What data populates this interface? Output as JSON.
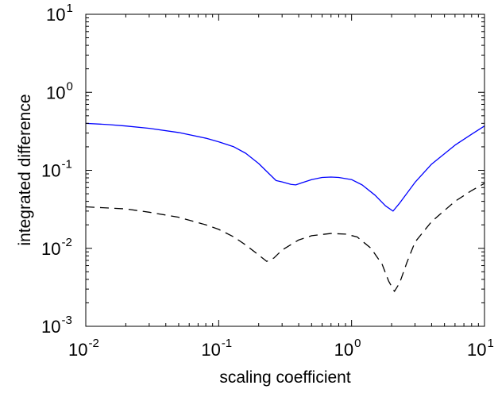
{
  "chart_data": {
    "type": "line",
    "title": "",
    "xlabel": "scaling coefficient",
    "ylabel": "integrated difference",
    "xscale": "log",
    "yscale": "log",
    "xlim": [
      0.01,
      10
    ],
    "ylim": [
      0.001,
      10
    ],
    "grid": false,
    "legend": "none",
    "x_ticks": [
      {
        "base": "10",
        "exp": "-2"
      },
      {
        "base": "10",
        "exp": "-1"
      },
      {
        "base": "10",
        "exp": "0"
      },
      {
        "base": "10",
        "exp": "1"
      }
    ],
    "y_ticks": [
      {
        "base": "10",
        "exp": "-3"
      },
      {
        "base": "10",
        "exp": "-2"
      },
      {
        "base": "10",
        "exp": "-1"
      },
      {
        "base": "10",
        "exp": "0"
      },
      {
        "base": "10",
        "exp": "1"
      }
    ],
    "series": [
      {
        "color": "#0000ff",
        "style": "solid",
        "x": [
          0.01,
          0.015,
          0.02,
          0.03,
          0.05,
          0.08,
          0.1,
          0.13,
          0.16,
          0.2,
          0.24,
          0.27,
          0.3,
          0.35,
          0.38,
          0.42,
          0.5,
          0.6,
          0.7,
          0.8,
          1.0,
          1.2,
          1.5,
          1.8,
          2.05,
          2.3,
          3.0,
          4.0,
          6.0,
          8.0,
          10.0
        ],
        "y": [
          0.4,
          0.385,
          0.37,
          0.345,
          0.305,
          0.258,
          0.232,
          0.2,
          0.165,
          0.122,
          0.09,
          0.074,
          0.071,
          0.066,
          0.065,
          0.069,
          0.076,
          0.081,
          0.082,
          0.081,
          0.076,
          0.065,
          0.048,
          0.035,
          0.03,
          0.038,
          0.07,
          0.12,
          0.21,
          0.29,
          0.37
        ]
      },
      {
        "color": "#000000",
        "style": "dashed",
        "x": [
          0.01,
          0.02,
          0.03,
          0.05,
          0.08,
          0.1,
          0.13,
          0.16,
          0.2,
          0.23,
          0.26,
          0.3,
          0.4,
          0.5,
          0.7,
          0.9,
          1.1,
          1.4,
          1.7,
          1.9,
          2.1,
          2.3,
          2.6,
          3.0,
          4.0,
          6.0,
          8.0,
          10.0
        ],
        "y": [
          0.034,
          0.032,
          0.029,
          0.025,
          0.02,
          0.0175,
          0.014,
          0.011,
          0.0082,
          0.0068,
          0.0075,
          0.0095,
          0.0128,
          0.0145,
          0.0155,
          0.0152,
          0.014,
          0.01,
          0.0062,
          0.0038,
          0.0028,
          0.0036,
          0.0065,
          0.012,
          0.022,
          0.04,
          0.055,
          0.068
        ]
      }
    ]
  }
}
